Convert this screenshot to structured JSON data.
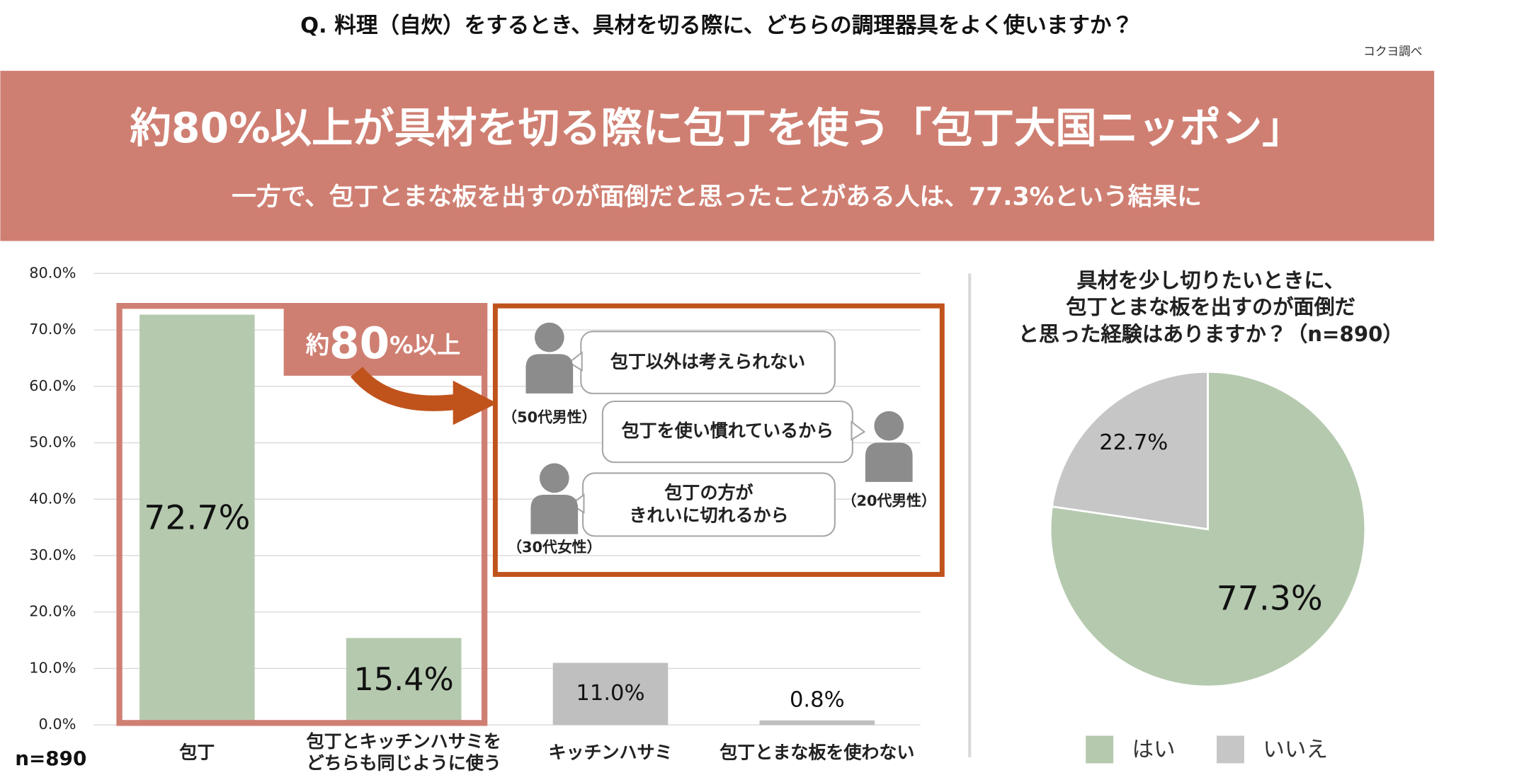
{
  "header": {
    "question": "Q.  料理（自炊）をするとき、具材を切る際に、どちらの調理器具をよく使いますか？",
    "source": "コクヨ調べ"
  },
  "banner": {
    "headline": "約80%以上が具材を切る際に包丁を使う「包丁大国ニッポン」",
    "subline": "一方で、包丁とまな板を出すのが面倒だと思ったことがある人は、77.3%という結果に"
  },
  "callout": {
    "badge": {
      "prefix": "約",
      "number": "80",
      "suffix": "%以上"
    },
    "quotes": [
      {
        "text": "包丁以外は考えられない",
        "speaker": "（50代男性）"
      },
      {
        "text": "包丁を使い慣れているから",
        "speaker": "（20代男性）"
      },
      {
        "text": "包丁の方が\nきれいに切れるから",
        "speaker": "（30代女性）"
      }
    ]
  },
  "chart_data": [
    {
      "type": "bar",
      "note": "n=890",
      "categories": [
        "包丁",
        "包丁とキッチンハサミを\nどちらも同じように使う",
        "キッチンハサミ",
        "包丁とまな板を使わない"
      ],
      "values": [
        72.7,
        15.4,
        11.0,
        0.8
      ],
      "value_labels": [
        "72.7%",
        "15.4%",
        "11.0%",
        "0.8%"
      ],
      "colors": [
        "#b5c9ae",
        "#b5c9ae",
        "#bfbfbf",
        "#bfbfbf"
      ],
      "ylim": [
        0,
        80
      ],
      "yticks": [
        {
          "value": 0,
          "label": "0.0%"
        },
        {
          "value": 10,
          "label": "10.0%"
        },
        {
          "value": 20,
          "label": "20.0%"
        },
        {
          "value": 30,
          "label": "30.0%"
        },
        {
          "value": 40,
          "label": "40.0%"
        },
        {
          "value": 50,
          "label": "50.0%"
        },
        {
          "value": 60,
          "label": "60.0%"
        },
        {
          "value": 70,
          "label": "70.0%"
        },
        {
          "value": 80,
          "label": "80.0%"
        }
      ],
      "grid": true
    },
    {
      "type": "pie",
      "title": "具材を少し切りたいときに、\n包丁とまな板を出すのが面倒だ\nと思った経験はありますか？（n=890）",
      "categories": [
        "はい",
        "いいえ"
      ],
      "values": [
        77.3,
        22.7
      ],
      "value_labels": [
        "77.3%",
        "22.7%"
      ],
      "colors": [
        "#b5c9ae",
        "#c6c6c6"
      ],
      "legend": "bottom"
    }
  ]
}
